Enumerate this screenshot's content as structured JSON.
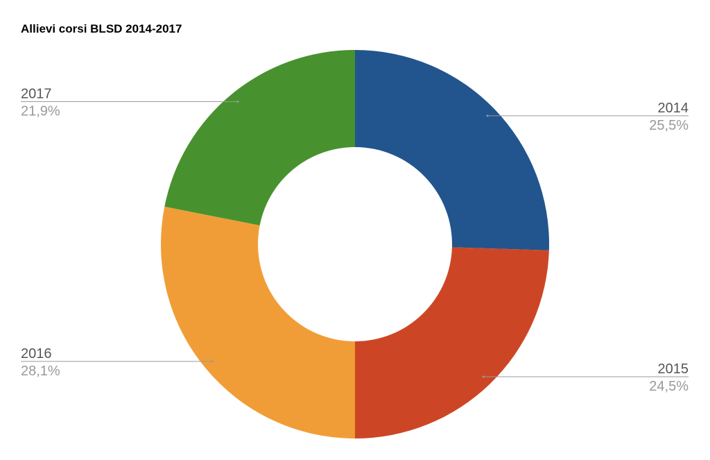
{
  "chart_data": {
    "type": "donut",
    "title": "Allievi corsi BLSD 2014-2017",
    "categories": [
      "2014",
      "2015",
      "2016",
      "2017"
    ],
    "values": [
      25.5,
      24.5,
      28.1,
      21.9
    ],
    "value_labels": [
      "25,5%",
      "24,5%",
      "28,1%",
      "21,9%"
    ],
    "colors": [
      "#22548e",
      "#cc4626",
      "#f19d37",
      "#47922f"
    ]
  }
}
